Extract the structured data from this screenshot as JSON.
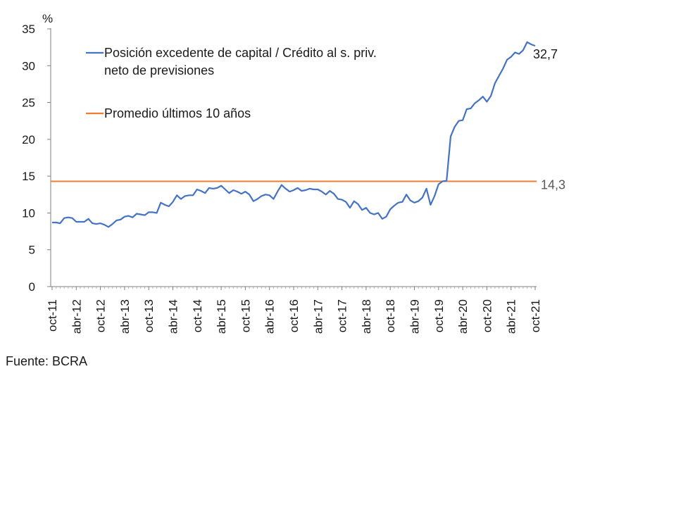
{
  "source": "Fuente: BCRA",
  "chart_data": {
    "type": "line",
    "ylabel": "%",
    "ylim": [
      0,
      35
    ],
    "yticks": [
      "0",
      "5",
      "10",
      "15",
      "20",
      "25",
      "30",
      "35"
    ],
    "xticks": [
      "oct-11",
      "abr-12",
      "oct-12",
      "abr-13",
      "oct-13",
      "abr-14",
      "oct-14",
      "abr-15",
      "oct-15",
      "abr-16",
      "oct-16",
      "abr-17",
      "oct-17",
      "abr-18",
      "oct-18",
      "abr-19",
      "oct-19",
      "abr-20",
      "oct-20",
      "abr-21",
      "oct-21"
    ],
    "legend_position": "top-left",
    "series": [
      {
        "name": "Posición excedente de capital / Crédito al s. priv. neto de previsiones",
        "legend_lines": [
          "Posición excedente de capital / Crédito al s. priv.",
          "neto de previsiones"
        ],
        "color": "#4472C4",
        "end_label": "32,7",
        "values": [
          8.7,
          8.7,
          8.6,
          9.3,
          9.4,
          9.3,
          8.8,
          8.8,
          8.8,
          9.2,
          8.6,
          8.5,
          8.6,
          8.4,
          8.1,
          8.5,
          9.0,
          9.1,
          9.5,
          9.6,
          9.4,
          9.9,
          9.8,
          9.7,
          10.1,
          10.1,
          10.0,
          11.4,
          11.1,
          10.9,
          11.5,
          12.4,
          11.9,
          12.3,
          12.4,
          12.4,
          13.2,
          13.0,
          12.7,
          13.4,
          13.3,
          13.4,
          13.7,
          13.2,
          12.7,
          13.1,
          12.9,
          12.6,
          12.9,
          12.5,
          11.6,
          11.9,
          12.3,
          12.5,
          12.4,
          11.9,
          12.9,
          13.8,
          13.3,
          12.9,
          13.1,
          13.4,
          13.0,
          13.1,
          13.3,
          13.2,
          13.2,
          12.9,
          12.5,
          13.0,
          12.6,
          11.9,
          11.8,
          11.5,
          10.7,
          11.6,
          11.2,
          10.4,
          10.7,
          10.0,
          9.8,
          10.0,
          9.2,
          9.5,
          10.5,
          11.0,
          11.4,
          11.5,
          12.5,
          11.7,
          11.4,
          11.6,
          12.1,
          13.3,
          11.1,
          12.3,
          13.9,
          14.3,
          14.4,
          20.4,
          21.7,
          22.5,
          22.6,
          24.1,
          24.2,
          24.9,
          25.3,
          25.8,
          25.1,
          25.9,
          27.6,
          28.6,
          29.6,
          30.8,
          31.2,
          31.8,
          31.6,
          32.1,
          33.2,
          32.9,
          32.7
        ]
      },
      {
        "name": "Promedio últimos 10 años",
        "legend_lines": [
          "Promedio últimos 10 años"
        ],
        "color": "#ED7D31",
        "end_label": "14,3",
        "constant": 14.3
      }
    ]
  }
}
